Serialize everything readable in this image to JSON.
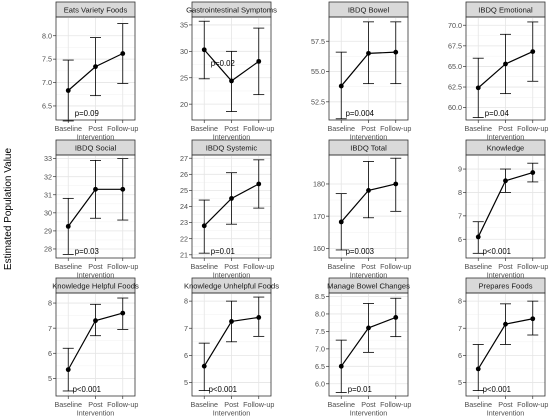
{
  "ylabel": "Estimated Population Value",
  "x_categories": [
    [
      "Baseline"
    ],
    [
      "Post",
      "Intervention"
    ],
    [
      "Follow-up"
    ]
  ],
  "chart_data": [
    {
      "type": "line",
      "title": "Eats Variety Foods",
      "ylim": [
        6.2,
        8.4
      ],
      "yticks": [
        6.5,
        7.0,
        7.5,
        8.0
      ],
      "ytick_labels": [
        "6.5",
        "7.0",
        "7.5",
        "8.0"
      ],
      "values": [
        6.83,
        7.34,
        7.62
      ],
      "lower": [
        6.18,
        6.72,
        6.98
      ],
      "upper": [
        7.48,
        7.96,
        8.26
      ],
      "annotation": "p=0.09"
    },
    {
      "type": "line",
      "title": "Gastrointestinal Symptoms",
      "ylim": [
        17,
        36.5
      ],
      "yticks": [
        20,
        25,
        30,
        35
      ],
      "ytick_labels": [
        "20",
        "25",
        "30",
        "35"
      ],
      "values": [
        30.3,
        24.4,
        28.1
      ],
      "lower": [
        24.8,
        18.6,
        21.8
      ],
      "upper": [
        35.7,
        30.0,
        34.4
      ],
      "annotation": "p=0.02"
    },
    {
      "type": "line",
      "title": "IBDQ Bowel",
      "ylim": [
        51,
        59.5
      ],
      "yticks": [
        52.5,
        55.0,
        57.5
      ],
      "ytick_labels": [
        "52.5",
        "55.0",
        "57.5"
      ],
      "values": [
        53.8,
        56.5,
        56.6
      ],
      "lower": [
        51.1,
        54.0,
        54.0
      ],
      "upper": [
        56.6,
        59.1,
        59.1
      ],
      "annotation": "p=0.004"
    },
    {
      "type": "line",
      "title": "IBDQ Emotional",
      "ylim": [
        58.5,
        71
      ],
      "yticks": [
        60.0,
        62.5,
        65.0,
        67.5,
        70.0
      ],
      "ytick_labels": [
        "60.0",
        "62.5",
        "65.0",
        "67.5",
        "70.0"
      ],
      "values": [
        62.4,
        65.3,
        66.8
      ],
      "lower": [
        58.8,
        61.7,
        63.2
      ],
      "upper": [
        66.0,
        68.9,
        70.4
      ],
      "annotation": "p=0.04"
    },
    {
      "type": "line",
      "title": "IBDQ Social",
      "ylim": [
        27.5,
        33.2
      ],
      "yticks": [
        28,
        29,
        30,
        31,
        32,
        33
      ],
      "ytick_labels": [
        "28",
        "29",
        "30",
        "31",
        "32",
        "33"
      ],
      "values": [
        29.25,
        31.3,
        31.3
      ],
      "lower": [
        27.7,
        29.7,
        29.6
      ],
      "upper": [
        30.8,
        32.9,
        33.0
      ],
      "annotation": "p=0.03"
    },
    {
      "type": "line",
      "title": "IBDQ Systemic",
      "ylim": [
        20.8,
        27.2
      ],
      "yticks": [
        21,
        22,
        23,
        24,
        25,
        26,
        27
      ],
      "ytick_labels": [
        "21",
        "22",
        "23",
        "24",
        "25",
        "26",
        "27"
      ],
      "values": [
        22.8,
        24.5,
        25.4
      ],
      "lower": [
        21.1,
        22.9,
        23.9
      ],
      "upper": [
        24.4,
        26.1,
        26.9
      ],
      "annotation": "p=0.01"
    },
    {
      "type": "line",
      "title": "IBDQ Total",
      "ylim": [
        157,
        189
      ],
      "yticks": [
        160,
        170,
        180
      ],
      "ytick_labels": [
        "160",
        "170",
        "180"
      ],
      "values": [
        168.2,
        178.0,
        180.0
      ],
      "lower": [
        159.5,
        169.5,
        171.5
      ],
      "upper": [
        177.0,
        187.0,
        188.0
      ],
      "annotation": "p=0.003"
    },
    {
      "type": "line",
      "title": "Knowledge",
      "ylim": [
        5.2,
        9.6
      ],
      "yticks": [
        6,
        7,
        8,
        9
      ],
      "ytick_labels": [
        "6",
        "7",
        "8",
        "9"
      ],
      "values": [
        6.1,
        8.5,
        8.85
      ],
      "lower": [
        5.4,
        8.0,
        8.45
      ],
      "upper": [
        6.75,
        9.0,
        9.25
      ],
      "annotation": "p<0.001"
    },
    {
      "type": "line",
      "title": "Knowledge Helpful Foods",
      "ylim": [
        4.3,
        8.4
      ],
      "yticks": [
        5,
        6,
        7,
        8
      ],
      "ytick_labels": [
        "5",
        "6",
        "7",
        "8"
      ],
      "values": [
        5.35,
        7.3,
        7.6
      ],
      "lower": [
        4.5,
        6.7,
        6.95
      ],
      "upper": [
        6.2,
        7.95,
        8.2
      ],
      "annotation": "p<0.001"
    },
    {
      "type": "line",
      "title": "Knowledge Unhelpful Foods",
      "ylim": [
        4.5,
        8.3
      ],
      "yticks": [
        5,
        6,
        7,
        8
      ],
      "ytick_labels": [
        "5",
        "6",
        "7",
        "8"
      ],
      "values": [
        5.6,
        7.25,
        7.4
      ],
      "lower": [
        4.7,
        6.5,
        6.7
      ],
      "upper": [
        6.45,
        8.0,
        8.15
      ],
      "annotation": "p<0.001"
    },
    {
      "type": "line",
      "title": "Manage Bowel Changes",
      "ylim": [
        5.65,
        8.6
      ],
      "yticks": [
        6.0,
        6.5,
        7.0,
        7.5,
        8.0,
        8.5
      ],
      "ytick_labels": [
        "6.0",
        "6.5",
        "7.0",
        "7.5",
        "8.0",
        "8.5"
      ],
      "values": [
        6.5,
        7.6,
        7.9
      ],
      "lower": [
        5.75,
        6.9,
        7.35
      ],
      "upper": [
        7.25,
        8.3,
        8.45
      ],
      "annotation": "p=0.01"
    },
    {
      "type": "line",
      "title": "Prepares Foods",
      "ylim": [
        4.5,
        8.3
      ],
      "yticks": [
        5,
        6,
        7,
        8
      ],
      "ytick_labels": [
        "5",
        "6",
        "7",
        "8"
      ],
      "values": [
        5.5,
        7.15,
        7.35
      ],
      "lower": [
        4.7,
        6.4,
        6.75
      ],
      "upper": [
        6.4,
        7.9,
        8.0
      ],
      "annotation": "p<0.001"
    }
  ],
  "colors": {
    "strip_fill": "#d9d9d9",
    "border": "#333333",
    "grid_major": "#e5e5e5",
    "grid_minor": "#f2f2f2",
    "line": "#000000",
    "text": "#333333",
    "tick_text": "#4d4d4d"
  }
}
